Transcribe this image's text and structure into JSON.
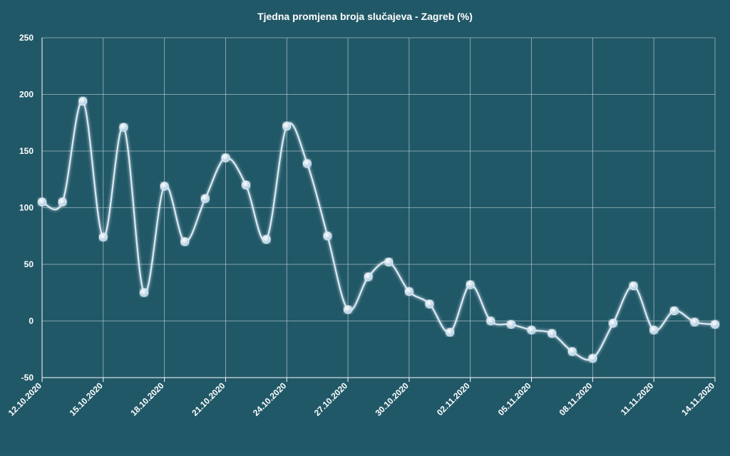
{
  "chart_data": {
    "type": "line",
    "title": "Tjedna promjena broja slučajeva - Zagreb (%)",
    "xlabel": "",
    "ylabel": "",
    "ylim": [
      -50,
      250
    ],
    "yticks": [
      250,
      200,
      150,
      100,
      50,
      0,
      -50
    ],
    "grid": true,
    "smooth": true,
    "x_tick_labels": [
      "12.10.2020",
      "15.10.2020",
      "18.10.2020",
      "21.10.2020",
      "24.10.2020",
      "27.10.2020",
      "30.10.2020",
      "02.11.2020",
      "05.11.2020",
      "08.11.2020",
      "11.11.2020",
      "14.11.2020"
    ],
    "x": [
      "12.10.2020",
      "13.10.2020",
      "14.10.2020",
      "15.10.2020",
      "16.10.2020",
      "17.10.2020",
      "18.10.2020",
      "19.10.2020",
      "20.10.2020",
      "21.10.2020",
      "22.10.2020",
      "23.10.2020",
      "24.10.2020",
      "25.10.2020",
      "26.10.2020",
      "27.10.2020",
      "28.10.2020",
      "29.10.2020",
      "30.10.2020",
      "31.10.2020",
      "01.11.2020",
      "02.11.2020",
      "03.11.2020",
      "04.11.2020",
      "05.11.2020",
      "06.11.2020",
      "07.11.2020",
      "08.11.2020",
      "09.11.2020",
      "10.11.2020",
      "11.11.2020",
      "12.11.2020",
      "13.11.2020",
      "14.11.2020"
    ],
    "series": [
      {
        "values": [
          105,
          105,
          194,
          74,
          171,
          25,
          119,
          70,
          108,
          144,
          120,
          72,
          172,
          139,
          75,
          10,
          39,
          52,
          26,
          15,
          -10,
          32,
          0,
          -3,
          -8,
          -11,
          -27,
          -33,
          -2,
          31,
          -8,
          9,
          -1,
          -3
        ],
        "color": "#dbe9f3"
      }
    ],
    "colors": {
      "background": "#215867",
      "line": "#dbe9f3",
      "marker": "#bcd6ea",
      "grid": "#c9d8dd"
    }
  }
}
